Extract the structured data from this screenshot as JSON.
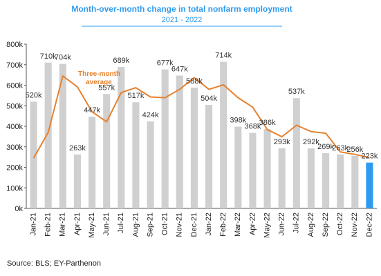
{
  "chart_data": {
    "type": "bar",
    "title": "Month-over-month change in total nonfarm employment",
    "subtitle": "2021 - 2022",
    "categories": [
      "Jan-21",
      "Feb-21",
      "Mar-21",
      "Apr-21",
      "May-21",
      "Jun-21",
      "Jul-21",
      "Aug-21",
      "Sep-21",
      "Oct-21",
      "Nov-21",
      "Dec-21",
      "Jan-22",
      "Feb-22",
      "Mar-22",
      "Apr-22",
      "May-22",
      "Jun-22",
      "Jul-22",
      "Aug-22",
      "Sep-22",
      "Oct-22",
      "Nov-22",
      "Dec-22"
    ],
    "series": [
      {
        "type": "bar",
        "values": [
          520,
          710,
          704,
          263,
          447,
          557,
          689,
          517,
          424,
          677,
          647,
          588,
          504,
          714,
          398,
          368,
          386,
          293,
          537,
          292,
          269,
          263,
          256,
          223
        ],
        "labels": [
          "520k",
          "710k",
          "704k",
          "263k",
          "447k",
          "557k",
          "689k",
          "517k",
          "424k",
          "677k",
          "647k",
          "588k",
          "504k",
          "714k",
          "398k",
          "368k",
          "386k",
          "293k",
          "537k",
          "292k",
          "269k",
          "263k",
          "256k",
          "223k"
        ],
        "color": "#d0d0d0",
        "highlight_last_color": "#2e9bf0"
      },
      {
        "name": "Three-month average",
        "type": "line",
        "values": [
          245,
          370,
          645,
          592,
          471,
          422,
          564,
          588,
          543,
          539,
          580,
          637,
          580,
          602,
          539,
          493,
          384,
          349,
          405,
          374,
          366,
          275,
          263,
          247
        ],
        "color": "#e6812e"
      }
    ],
    "y_ticks": [
      "0k",
      "100k",
      "200k",
      "300k",
      "400k",
      "500k",
      "600k",
      "700k",
      "800k"
    ],
    "ylim": [
      0,
      800
    ],
    "legend_annotation": [
      "Three-month",
      "average"
    ],
    "title_color": "#2e9bf0",
    "source": "Source: BLS; EY-Parthenon"
  }
}
